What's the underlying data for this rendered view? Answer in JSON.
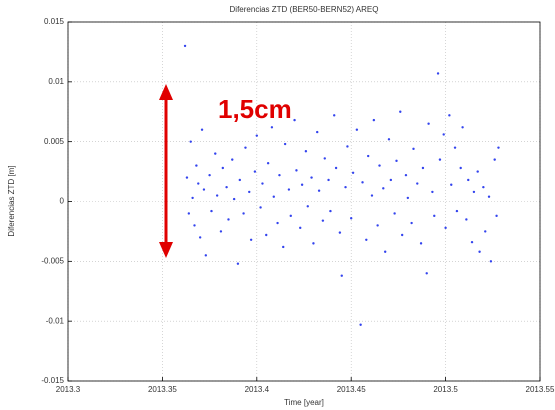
{
  "chart_data": {
    "type": "scatter",
    "title": "Diferencias ZTD (BER50-BERN52) AREQ",
    "x_label": "Time [year]",
    "y_label": "Diferencias ZTD [m]",
    "annotations": [
      "1,5cm"
    ],
    "xlim": [
      2013.3,
      2013.55
    ],
    "xticks": [
      2013.3,
      2013.35,
      2013.4,
      2013.45,
      2013.5,
      2013.55
    ],
    "ylim": [
      -0.015,
      0.015
    ],
    "yticks": [
      -0.015,
      -0.01,
      -0.005,
      0,
      0.005,
      0.01,
      0.015
    ],
    "grid": true,
    "series": [
      {
        "color": "#3344ee",
        "x": [
          2013.362,
          2013.363,
          2013.364,
          2013.365,
          2013.366,
          2013.367,
          2013.368,
          2013.369,
          2013.37,
          2013.371,
          2013.372,
          2013.373,
          2013.375,
          2013.376,
          2013.378,
          2013.379,
          2013.381,
          2013.382,
          2013.384,
          2013.385,
          2013.387,
          2013.388,
          2013.39,
          2013.391,
          2013.393,
          2013.394,
          2013.396,
          2013.397,
          2013.399,
          2013.4,
          2013.402,
          2013.403,
          2013.405,
          2013.406,
          2013.408,
          2013.409,
          2013.411,
          2013.412,
          2013.414,
          2013.415,
          2013.417,
          2013.418,
          2013.42,
          2013.421,
          2013.423,
          2013.424,
          2013.426,
          2013.427,
          2013.429,
          2013.43,
          2013.432,
          2013.433,
          2013.435,
          2013.436,
          2013.438,
          2013.439,
          2013.441,
          2013.442,
          2013.444,
          2013.445,
          2013.447,
          2013.448,
          2013.45,
          2013.451,
          2013.453,
          2013.455,
          2013.456,
          2013.458,
          2013.459,
          2013.461,
          2013.462,
          2013.464,
          2013.465,
          2013.467,
          2013.468,
          2013.47,
          2013.471,
          2013.473,
          2013.474,
          2013.476,
          2013.477,
          2013.479,
          2013.48,
          2013.482,
          2013.483,
          2013.485,
          2013.487,
          2013.488,
          2013.49,
          2013.491,
          2013.493,
          2013.494,
          2013.496,
          2013.497,
          2013.499,
          2013.5,
          2013.502,
          2013.503,
          2013.505,
          2013.506,
          2013.508,
          2013.509,
          2013.511,
          2013.512,
          2013.514,
          2013.515,
          2013.517,
          2013.518,
          2013.52,
          2013.521,
          2013.523,
          2013.524,
          2013.526,
          2013.527,
          2013.528
        ],
        "values": [
          0.013,
          0.002,
          -0.001,
          0.005,
          0.0003,
          -0.002,
          0.003,
          0.0015,
          -0.003,
          0.006,
          0.001,
          -0.0045,
          0.0022,
          -0.0008,
          0.004,
          0.0005,
          -0.0025,
          0.0028,
          0.0012,
          -0.0015,
          0.0035,
          0.0002,
          -0.0052,
          0.0018,
          -0.001,
          0.0045,
          0.0008,
          -0.0032,
          0.0025,
          0.0055,
          -0.0005,
          0.0015,
          -0.0028,
          0.0032,
          0.0062,
          0.0004,
          -0.0018,
          0.0022,
          -0.0038,
          0.0048,
          0.001,
          -0.0012,
          0.0068,
          0.0026,
          -0.0022,
          0.0014,
          0.0042,
          -0.0004,
          0.002,
          -0.0035,
          0.0058,
          0.0009,
          -0.0016,
          0.0036,
          0.0018,
          -0.0008,
          0.0072,
          0.0028,
          -0.0026,
          -0.0062,
          0.0012,
          0.0046,
          -0.0014,
          0.0024,
          0.006,
          -0.0103,
          0.0016,
          -0.0032,
          0.0038,
          0.0005,
          0.0068,
          -0.002,
          0.003,
          0.0011,
          -0.0042,
          0.0052,
          0.0018,
          -0.001,
          0.0034,
          0.0075,
          -0.0028,
          0.0022,
          0.0003,
          -0.0018,
          0.0044,
          0.0015,
          -0.0035,
          0.0028,
          -0.006,
          0.0065,
          0.0008,
          -0.0012,
          0.0107,
          0.0035,
          0.0056,
          -0.0022,
          0.0072,
          0.0014,
          0.0045,
          -0.0008,
          0.0028,
          0.0062,
          -0.0015,
          0.0018,
          -0.0034,
          0.0008,
          0.0025,
          -0.0042,
          0.0012,
          -0.0025,
          0.0004,
          -0.005,
          0.0035,
          -0.0012,
          0.0045
        ]
      }
    ]
  }
}
